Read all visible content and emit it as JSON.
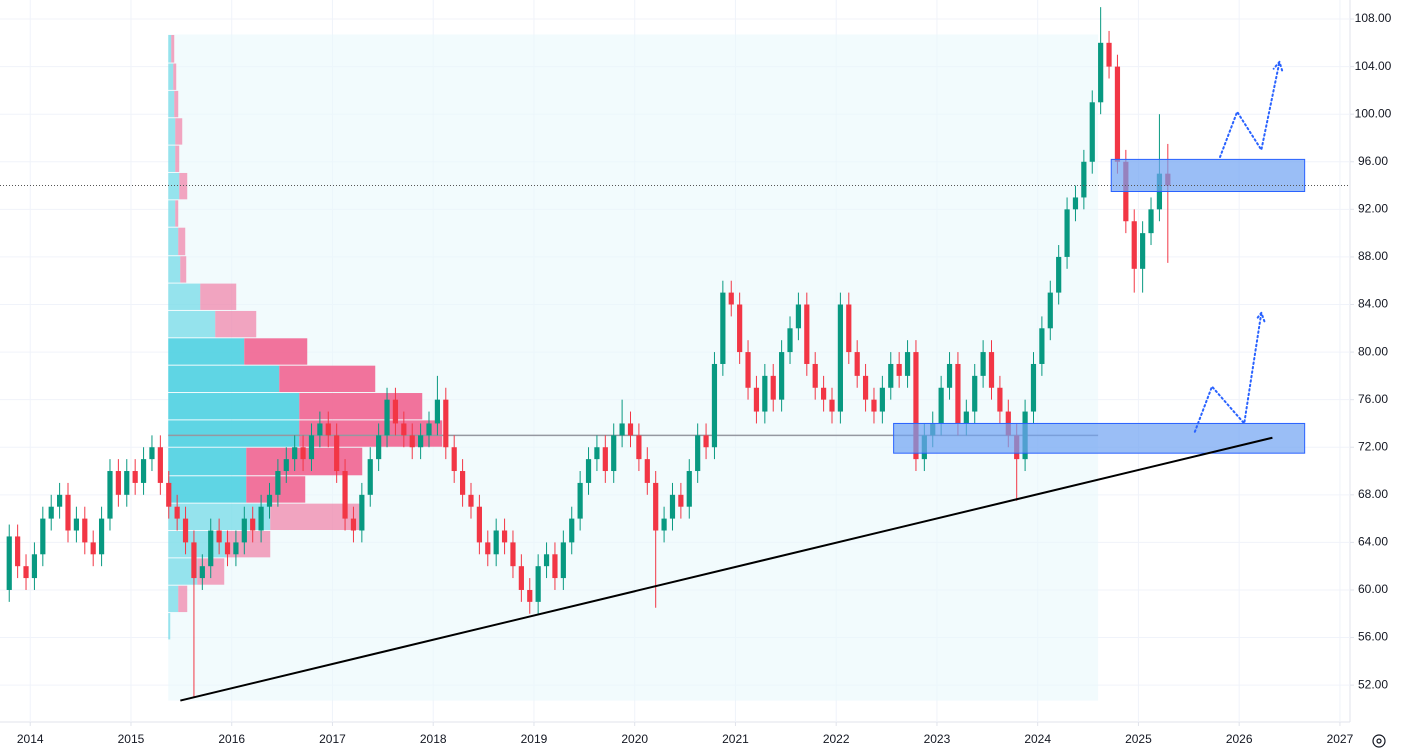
{
  "chart_data": {
    "type": "candlestick",
    "x": [
      "2013-10",
      "2013-11",
      "2013-12",
      "2014-01",
      "2014-02",
      "2014-03",
      "2014-04",
      "2014-05",
      "2014-06",
      "2014-07",
      "2014-08",
      "2014-09",
      "2014-10",
      "2014-11",
      "2014-12",
      "2015-01",
      "2015-02",
      "2015-03",
      "2015-04",
      "2015-05",
      "2015-06",
      "2015-07",
      "2015-08",
      "2015-09",
      "2015-10",
      "2015-11",
      "2015-12",
      "2016-01",
      "2016-02",
      "2016-03",
      "2016-04",
      "2016-05",
      "2016-06",
      "2016-07",
      "2016-08",
      "2016-09",
      "2016-10",
      "2016-11",
      "2016-12",
      "2017-01",
      "2017-02",
      "2017-03",
      "2017-04",
      "2017-05",
      "2017-06",
      "2017-07",
      "2017-08",
      "2017-09",
      "2017-10",
      "2017-11",
      "2017-12",
      "2018-01",
      "2018-02",
      "2018-03",
      "2018-04",
      "2018-05",
      "2018-06",
      "2018-07",
      "2018-08",
      "2018-09",
      "2018-10",
      "2018-11",
      "2018-12",
      "2019-01",
      "2019-02",
      "2019-03",
      "2019-04",
      "2019-05",
      "2019-06",
      "2019-07",
      "2019-08",
      "2019-09",
      "2019-10",
      "2019-11",
      "2019-12",
      "2020-01",
      "2020-02",
      "2020-03",
      "2020-04",
      "2020-05",
      "2020-06",
      "2020-07",
      "2020-08",
      "2020-09",
      "2020-10",
      "2020-11",
      "2020-12",
      "2021-01",
      "2021-02",
      "2021-03",
      "2021-04",
      "2021-05",
      "2021-06",
      "2021-07",
      "2021-08",
      "2021-09",
      "2021-10",
      "2021-11",
      "2021-12",
      "2022-01",
      "2022-02",
      "2022-03",
      "2022-04",
      "2022-05",
      "2022-06",
      "2022-07",
      "2022-08",
      "2022-09",
      "2022-10",
      "2022-11",
      "2022-12",
      "2023-01",
      "2023-02",
      "2023-03",
      "2023-04",
      "2023-05",
      "2023-06",
      "2023-07",
      "2023-08",
      "2023-09",
      "2023-10",
      "2023-11",
      "2023-12",
      "2024-01",
      "2024-02",
      "2024-03",
      "2024-04",
      "2024-05",
      "2024-06",
      "2024-07",
      "2024-08",
      "2024-09",
      "2024-10",
      "2024-11",
      "2024-12",
      "2025-01",
      "2025-02",
      "2025-03",
      "2025-04"
    ],
    "open": [
      60,
      64.5,
      62,
      61,
      63,
      66,
      67,
      68,
      65,
      66,
      64,
      63,
      66,
      70,
      68,
      70,
      69,
      71,
      72,
      69,
      67,
      66,
      64,
      61,
      62,
      65,
      64,
      63,
      64,
      66,
      65,
      67,
      68,
      70,
      71,
      72,
      71,
      73,
      74,
      73,
      70,
      66,
      65,
      68,
      71,
      73,
      76,
      74,
      73,
      72,
      73,
      74,
      76,
      72,
      70,
      68,
      67,
      64,
      63,
      65,
      64,
      62,
      60,
      59,
      62,
      63,
      61,
      64,
      66,
      69,
      71,
      72,
      70,
      73,
      74,
      73,
      71,
      69,
      65,
      66,
      68,
      67,
      70,
      73,
      72,
      79,
      85,
      84,
      80,
      77,
      75,
      78,
      76,
      80,
      82,
      84,
      79,
      77,
      76,
      75,
      84,
      80,
      78,
      76,
      75,
      77,
      79,
      78,
      80,
      71,
      73,
      74,
      77,
      79,
      74,
      75,
      78,
      80,
      77,
      75,
      73,
      71,
      75,
      79,
      82,
      85,
      88,
      92,
      93,
      96,
      101,
      106,
      104,
      96,
      91,
      87,
      90,
      92,
      95
    ],
    "high": [
      65.5,
      65.5,
      63,
      64,
      67,
      68,
      69,
      69,
      67,
      67,
      65,
      67,
      71,
      71,
      71,
      71,
      72,
      73,
      73,
      70,
      68,
      67,
      65,
      63,
      66,
      66,
      65,
      65,
      67,
      67,
      68,
      69,
      71,
      72,
      73,
      73,
      74,
      75,
      75,
      74,
      71,
      67,
      69,
      72,
      74,
      77,
      77,
      75,
      74,
      74,
      75,
      78,
      77,
      73,
      71,
      69,
      68,
      65,
      66,
      66,
      65,
      63,
      61,
      63,
      64,
      64,
      65,
      67,
      70,
      72,
      73,
      73,
      74,
      76,
      75,
      74,
      72,
      70,
      67,
      69,
      69,
      71,
      74,
      74,
      80,
      86,
      86,
      85,
      81,
      78,
      79,
      79,
      81,
      83,
      85,
      85,
      80,
      78,
      77,
      85,
      85,
      81,
      79,
      77,
      78,
      80,
      80,
      81,
      81,
      74,
      75,
      78,
      80,
      80,
      76,
      79,
      81,
      81,
      78,
      76,
      74,
      76,
      80,
      83,
      86,
      89,
      93,
      94,
      97,
      102,
      109,
      107,
      105,
      97,
      92,
      91,
      93,
      100,
      97.5
    ],
    "low": [
      59,
      61,
      60,
      60,
      62,
      65,
      66,
      64,
      64,
      63,
      62,
      62,
      65,
      67,
      67,
      68,
      68,
      70,
      68,
      66,
      65,
      63,
      51,
      60,
      61,
      63,
      62,
      62,
      63,
      64,
      64,
      66,
      67,
      69,
      70,
      70,
      70,
      72,
      72,
      69,
      65,
      64,
      64,
      67,
      70,
      72,
      73,
      72,
      71,
      71,
      72,
      73,
      71,
      69,
      67,
      66,
      63,
      62,
      62,
      63,
      61,
      59,
      58,
      58,
      61,
      60,
      60,
      63,
      65,
      68,
      70,
      69,
      69,
      72,
      72,
      70,
      68,
      58.5,
      64,
      65,
      66,
      66,
      69,
      71,
      71,
      78,
      83,
      79,
      76,
      74,
      74,
      75,
      75,
      79,
      81,
      78,
      76,
      75,
      74,
      74,
      79,
      77,
      75,
      74,
      74,
      76,
      77,
      77,
      70,
      70,
      72,
      73,
      76,
      73,
      73,
      74,
      77,
      76,
      74,
      72,
      67.5,
      70,
      74,
      78,
      81,
      84,
      87,
      91,
      92,
      95,
      100,
      103,
      95,
      90,
      85,
      85,
      89,
      91,
      87.5
    ],
    "close": [
      64.5,
      62,
      61,
      63,
      66,
      67,
      68,
      65,
      66,
      64,
      63,
      66,
      70,
      68,
      70,
      69,
      71,
      72,
      69,
      67,
      66,
      64,
      61,
      62,
      65,
      64,
      63,
      64,
      66,
      65,
      67,
      68,
      70,
      71,
      72,
      71,
      73,
      74,
      73,
      70,
      66,
      65,
      68,
      71,
      73,
      76,
      74,
      73,
      72,
      73,
      74,
      76,
      72,
      70,
      68,
      67,
      64,
      63,
      65,
      64,
      62,
      60,
      59,
      62,
      63,
      61,
      64,
      66,
      69,
      71,
      72,
      70,
      73,
      74,
      73,
      71,
      69,
      65,
      66,
      68,
      67,
      70,
      73,
      72,
      79,
      85,
      84,
      80,
      77,
      75,
      78,
      76,
      80,
      82,
      84,
      79,
      77,
      76,
      75,
      84,
      80,
      78,
      76,
      75,
      77,
      79,
      78,
      80,
      71,
      73,
      74,
      77,
      79,
      74,
      75,
      78,
      80,
      77,
      75,
      73,
      71,
      75,
      79,
      82,
      85,
      88,
      92,
      93,
      96,
      101,
      106,
      104,
      96,
      91,
      87,
      90,
      92,
      95,
      94
    ],
    "up_color": "#089981",
    "down_color": "#f23645",
    "xlim": [
      2013.7,
      2027.1
    ],
    "xticks": [
      2014,
      2015,
      2016,
      2017,
      2018,
      2019,
      2020,
      2021,
      2022,
      2023,
      2024,
      2025,
      2026,
      2027
    ],
    "ylim": [
      48.9,
      109.6
    ],
    "yticks": [
      {
        "value": 52,
        "label": "52.00"
      },
      {
        "value": 56,
        "label": "56.00"
      },
      {
        "value": 60,
        "label": "60.00"
      },
      {
        "value": 64,
        "label": "64.00"
      },
      {
        "value": 68,
        "label": "68.00"
      },
      {
        "value": 72,
        "label": "72.00"
      },
      {
        "value": 76,
        "label": "76.00"
      },
      {
        "value": 80,
        "label": "80.00"
      },
      {
        "value": 84,
        "label": "84.00"
      },
      {
        "value": 88,
        "label": "88.00"
      },
      {
        "value": 92,
        "label": "92.00"
      },
      {
        "value": 96,
        "label": "96.00"
      },
      {
        "value": 100,
        "label": "100.00"
      },
      {
        "value": 104,
        "label": "104.00"
      },
      {
        "value": 108,
        "label": "108.00"
      }
    ],
    "grid": true,
    "last_price": 94,
    "volume_profile": {
      "x": [
        2015.37,
        2024.6
      ],
      "y": [
        50.7,
        106.7
      ],
      "poc": 73,
      "value_area": [
        67.3,
        81.2
      ],
      "bins": [
        106.7,
        104.3,
        102.0,
        99.7,
        97.4,
        95.1,
        92.8,
        90.5,
        88.1,
        85.8,
        83.5,
        81.2,
        78.9,
        76.6,
        74.3,
        72.0,
        69.6,
        67.3,
        65.0,
        62.7,
        60.4,
        58.1,
        55.8
      ],
      "up": [
        3,
        5,
        6,
        7,
        7,
        11,
        7,
        10,
        12,
        32,
        47,
        76,
        111,
        131,
        131,
        78,
        78,
        102,
        58,
        29,
        10,
        2
      ],
      "down": [
        3,
        3,
        4,
        7,
        4,
        8,
        3,
        7,
        6,
        36,
        41,
        63,
        96,
        123,
        143,
        116,
        59,
        90,
        44,
        27,
        9,
        0
      ],
      "up_color": "#56d3e3",
      "down_color": "#f06b97",
      "range_color": "#e9f8fb"
    },
    "trend_line": {
      "x": [
        2015.49,
        2026.33
      ],
      "y": [
        50.7,
        72.8
      ]
    },
    "zones": [
      {
        "x": [
          2024.73,
          2026.65
        ],
        "y": [
          96.2,
          93.5
        ]
      },
      {
        "x": [
          2022.57,
          2026.65
        ],
        "y": [
          74.0,
          71.5
        ]
      }
    ],
    "zone_color": "#6fa2f2",
    "projections": [
      {
        "x": [
          2025.81,
          2025.98,
          2026.22,
          2026.4
        ],
        "y": [
          96.4,
          100.2,
          97.0,
          104.4
        ]
      },
      {
        "x": [
          2025.56,
          2025.73,
          2026.05,
          2026.22
        ],
        "y": [
          73.3,
          77.1,
          74.0,
          83.3
        ]
      }
    ],
    "projection_color": "#2962ff"
  }
}
